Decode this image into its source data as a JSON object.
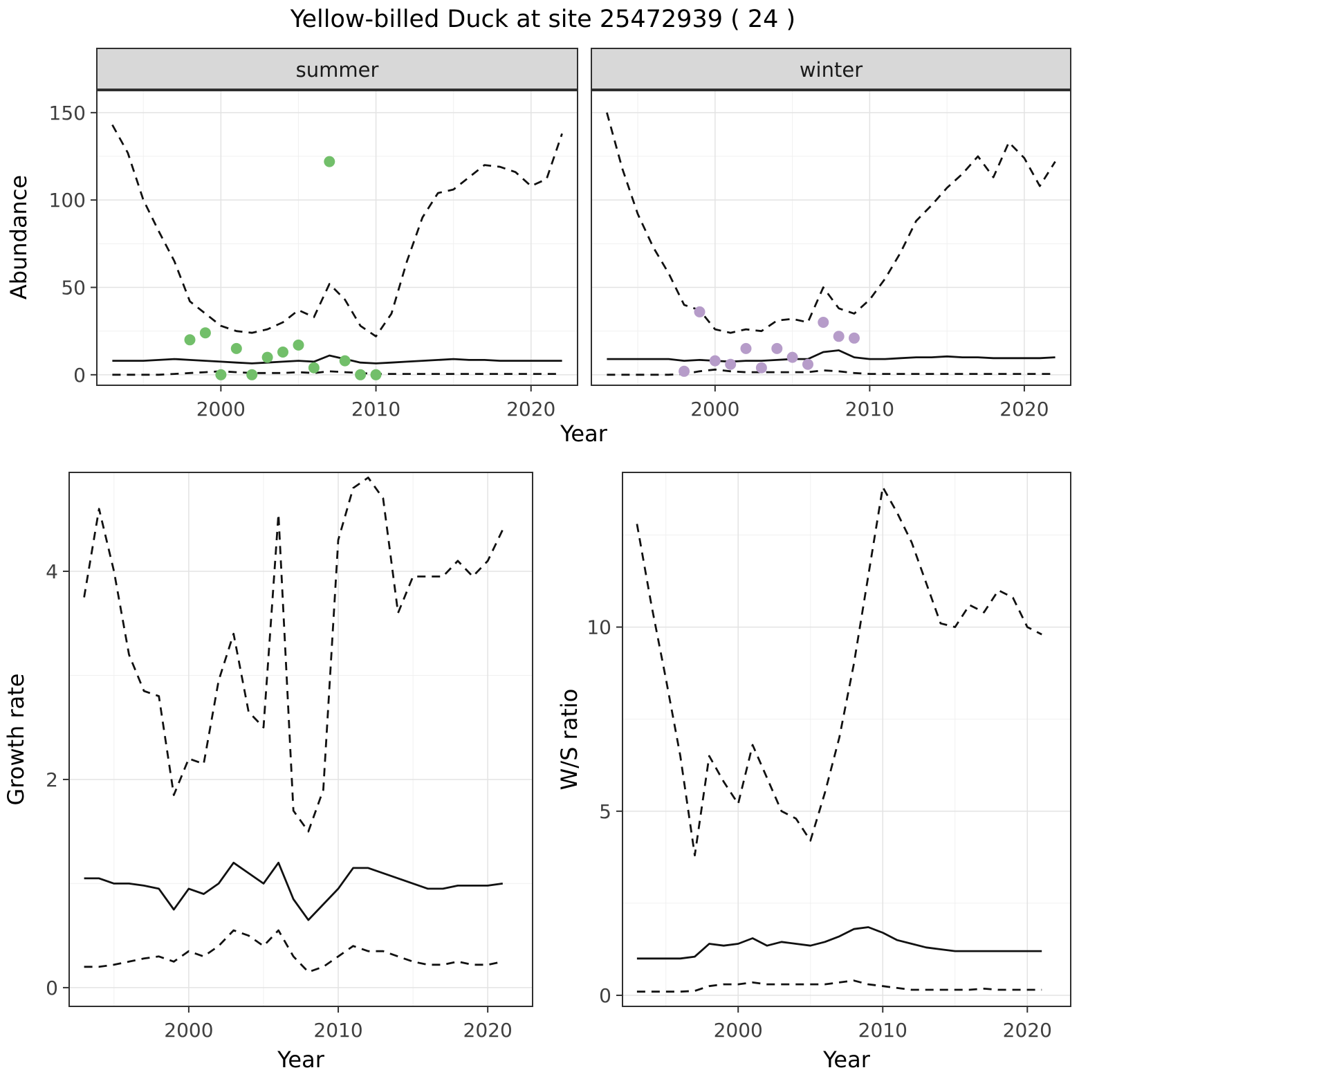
{
  "title": "Yellow-billed Duck at site 25472939 ( 24 )",
  "colors": {
    "line": "#111111",
    "grid_major": "#e3e3e3",
    "grid_minor": "#f0f0f0",
    "strip_bg": "#d8d8d8",
    "panel_border": "#2f2f2f",
    "tick_text": "#404040",
    "summer_points": "#72bf6a",
    "winter_points": "#b69cc9"
  },
  "chart_data": [
    {
      "type": "line",
      "facet": "summer",
      "xlabel": "Year",
      "ylabel": "Abundance",
      "xlim": [
        1992,
        2023
      ],
      "ylim": [
        -6,
        163
      ],
      "xticks": [
        2000,
        2010,
        2020
      ],
      "xtick_labels": [
        "2000",
        "2010",
        "2020"
      ],
      "xminor": [
        1995,
        2005,
        2015
      ],
      "yticks": [
        0,
        50,
        100,
        150
      ],
      "ytick_labels": [
        "0",
        "50",
        "100",
        "150"
      ],
      "yminor": [
        25,
        75,
        125
      ],
      "x": [
        1993,
        1994,
        1995,
        1996,
        1997,
        1998,
        1999,
        2000,
        2001,
        2002,
        2003,
        2004,
        2005,
        2006,
        2007,
        2008,
        2009,
        2010,
        2011,
        2012,
        2013,
        2014,
        2015,
        2016,
        2017,
        2018,
        2019,
        2020,
        2021,
        2022
      ],
      "series": [
        {
          "name": "upper-95ci",
          "linetype": "dashed",
          "y": [
            143,
            127,
            100,
            82,
            65,
            42,
            35,
            28,
            25,
            24,
            26,
            30,
            37,
            33,
            52,
            43,
            28,
            22,
            35,
            65,
            90,
            104,
            106,
            113,
            120,
            119,
            116,
            108,
            112,
            138
          ]
        },
        {
          "name": "median",
          "linetype": "solid",
          "y": [
            8,
            8,
            8,
            8.5,
            9,
            8.5,
            8,
            7.5,
            7,
            6.5,
            7,
            7.5,
            8,
            7.5,
            11,
            9,
            7,
            6.5,
            7,
            7.5,
            8,
            8.5,
            9,
            8.5,
            8.5,
            8,
            8,
            8,
            8,
            8
          ]
        },
        {
          "name": "lower-95ci",
          "linetype": "dashed",
          "y": [
            0,
            0,
            0,
            0,
            0.5,
            1,
            1.5,
            2,
            1.5,
            1,
            1,
            1,
            1.5,
            1,
            2,
            1.5,
            1,
            0.5,
            0.5,
            0.5,
            0.5,
            0.5,
            0.5,
            0.5,
            0.5,
            0.5,
            0.5,
            0.5,
            0.5,
            0.5
          ]
        },
        {
          "name": "observed-counts",
          "type": "points",
          "color": "#72bf6a",
          "x": [
            1998,
            1999,
            2000,
            2001,
            2002,
            2003,
            2004,
            2005,
            2006,
            2007,
            2008,
            2009,
            2010
          ],
          "y": [
            20,
            24,
            0,
            15,
            0,
            10,
            13,
            17,
            4,
            122,
            8,
            0,
            0
          ]
        }
      ]
    },
    {
      "type": "line",
      "facet": "winter",
      "xlabel": "Year",
      "ylabel": "Abundance",
      "xlim": [
        1992,
        2023
      ],
      "ylim": [
        -6,
        163
      ],
      "xticks": [
        2000,
        2010,
        2020
      ],
      "xtick_labels": [
        "2000",
        "2010",
        "2020"
      ],
      "xminor": [
        1995,
        2005,
        2015
      ],
      "yticks": [
        0,
        50,
        100,
        150
      ],
      "ytick_labels": [
        "0",
        "50",
        "100",
        "150"
      ],
      "yminor": [
        25,
        75,
        125
      ],
      "x": [
        1993,
        1994,
        1995,
        1996,
        1997,
        1998,
        1999,
        2000,
        2001,
        2002,
        2003,
        2004,
        2005,
        2006,
        2007,
        2008,
        2009,
        2010,
        2011,
        2012,
        2013,
        2014,
        2015,
        2016,
        2017,
        2018,
        2019,
        2020,
        2021,
        2022
      ],
      "series": [
        {
          "name": "upper-95ci",
          "linetype": "dashed",
          "y": [
            150,
            118,
            92,
            73,
            58,
            40,
            37,
            26,
            24,
            26,
            25,
            31,
            32,
            30,
            50,
            38,
            35,
            43,
            55,
            70,
            88,
            97,
            107,
            115,
            125,
            113,
            133,
            124,
            108,
            122
          ]
        },
        {
          "name": "median",
          "linetype": "solid",
          "y": [
            9,
            9,
            9,
            9,
            9,
            8,
            8.5,
            8,
            7.5,
            8,
            8,
            8.5,
            9,
            9,
            13,
            14,
            10,
            9,
            9,
            9.5,
            10,
            10,
            10.5,
            10,
            10,
            9.5,
            9.5,
            9.5,
            9.5,
            10
          ]
        },
        {
          "name": "lower-95ci",
          "linetype": "dashed",
          "y": [
            0,
            0,
            0,
            0,
            0,
            0.5,
            2,
            3,
            2,
            1.5,
            1.5,
            1.5,
            1.5,
            1.5,
            2.5,
            2,
            1,
            0.5,
            0.5,
            0.5,
            0.5,
            0.5,
            0.5,
            0.5,
            0.5,
            0.5,
            0.5,
            0.5,
            0.5,
            0.5
          ]
        },
        {
          "name": "observed-counts",
          "type": "points",
          "color": "#b69cc9",
          "x": [
            1998,
            1999,
            2000,
            2001,
            2002,
            2003,
            2004,
            2005,
            2006,
            2007,
            2008,
            2009
          ],
          "y": [
            2,
            36,
            8,
            6,
            15,
            4,
            15,
            10,
            6,
            30,
            22,
            21
          ]
        }
      ]
    },
    {
      "type": "line",
      "xlabel": "Year",
      "ylabel": "Growth rate",
      "xlim": [
        1992,
        2023
      ],
      "ylim": [
        -0.18,
        4.95
      ],
      "xticks": [
        2000,
        2010,
        2020
      ],
      "xtick_labels": [
        "2000",
        "2010",
        "2020"
      ],
      "xminor": [
        1995,
        2005,
        2015
      ],
      "yticks": [
        0,
        2,
        4
      ],
      "ytick_labels": [
        "0",
        "2",
        "4"
      ],
      "yminor": [
        1,
        3
      ],
      "x": [
        1993,
        1994,
        1995,
        1996,
        1997,
        1998,
        1999,
        2000,
        2001,
        2002,
        2003,
        2004,
        2005,
        2006,
        2007,
        2008,
        2009,
        2010,
        2011,
        2012,
        2013,
        2014,
        2015,
        2016,
        2017,
        2018,
        2019,
        2020,
        2021
      ],
      "series": [
        {
          "name": "upper-95ci",
          "linetype": "dashed",
          "y": [
            3.75,
            4.6,
            4.0,
            3.2,
            2.85,
            2.8,
            1.85,
            2.2,
            2.15,
            2.95,
            3.4,
            2.65,
            2.5,
            4.55,
            1.7,
            1.5,
            1.9,
            4.3,
            4.8,
            4.9,
            4.7,
            3.6,
            3.95,
            3.95,
            3.95,
            4.1,
            3.95,
            4.1,
            4.4
          ]
        },
        {
          "name": "median",
          "linetype": "solid",
          "y": [
            1.05,
            1.05,
            1.0,
            1.0,
            0.98,
            0.95,
            0.75,
            0.95,
            0.9,
            1.0,
            1.2,
            1.1,
            1.0,
            1.2,
            0.85,
            0.65,
            0.8,
            0.95,
            1.15,
            1.15,
            1.1,
            1.05,
            1.0,
            0.95,
            0.95,
            0.98,
            0.98,
            0.98,
            1.0
          ]
        },
        {
          "name": "lower-95ci",
          "linetype": "dashed",
          "y": [
            0.2,
            0.2,
            0.22,
            0.25,
            0.28,
            0.3,
            0.25,
            0.35,
            0.3,
            0.4,
            0.55,
            0.5,
            0.4,
            0.55,
            0.3,
            0.15,
            0.2,
            0.3,
            0.4,
            0.35,
            0.35,
            0.3,
            0.25,
            0.22,
            0.22,
            0.25,
            0.22,
            0.22,
            0.25
          ]
        }
      ]
    },
    {
      "type": "line",
      "xlabel": "Year",
      "ylabel": "W/S ratio",
      "xlim": [
        1992,
        2023
      ],
      "ylim": [
        -0.3,
        14.2
      ],
      "xticks": [
        2000,
        2010,
        2020
      ],
      "xtick_labels": [
        "2000",
        "2010",
        "2020"
      ],
      "xminor": [
        1995,
        2005,
        2015
      ],
      "yticks": [
        0,
        5,
        10
      ],
      "ytick_labels": [
        "0",
        "5",
        "10"
      ],
      "yminor": [
        2.5,
        7.5,
        12.5
      ],
      "x": [
        1993,
        1994,
        1995,
        1996,
        1997,
        1998,
        1999,
        2000,
        2001,
        2002,
        2003,
        2004,
        2005,
        2006,
        2007,
        2008,
        2009,
        2010,
        2011,
        2012,
        2013,
        2014,
        2015,
        2016,
        2017,
        2018,
        2019,
        2020,
        2021
      ],
      "series": [
        {
          "name": "upper-95ci",
          "linetype": "dashed",
          "y": [
            12.8,
            10.6,
            8.6,
            6.5,
            3.8,
            6.5,
            5.8,
            5.2,
            6.8,
            5.9,
            5.0,
            4.8,
            4.2,
            5.5,
            7.0,
            9.0,
            11.4,
            13.8,
            13.1,
            12.3,
            11.2,
            10.1,
            10.0,
            10.6,
            10.4,
            11.0,
            10.8,
            10.0,
            9.8
          ]
        },
        {
          "name": "median",
          "linetype": "solid",
          "y": [
            1.0,
            1.0,
            1.0,
            1.0,
            1.05,
            1.4,
            1.35,
            1.4,
            1.55,
            1.35,
            1.45,
            1.4,
            1.35,
            1.45,
            1.6,
            1.8,
            1.85,
            1.7,
            1.5,
            1.4,
            1.3,
            1.25,
            1.2,
            1.2,
            1.2,
            1.2,
            1.2,
            1.2,
            1.2
          ]
        },
        {
          "name": "lower-95ci",
          "linetype": "dashed",
          "y": [
            0.1,
            0.1,
            0.1,
            0.1,
            0.12,
            0.25,
            0.3,
            0.3,
            0.35,
            0.3,
            0.3,
            0.3,
            0.3,
            0.3,
            0.35,
            0.4,
            0.3,
            0.25,
            0.2,
            0.15,
            0.15,
            0.15,
            0.15,
            0.15,
            0.18,
            0.15,
            0.15,
            0.15,
            0.15
          ]
        }
      ]
    }
  ]
}
